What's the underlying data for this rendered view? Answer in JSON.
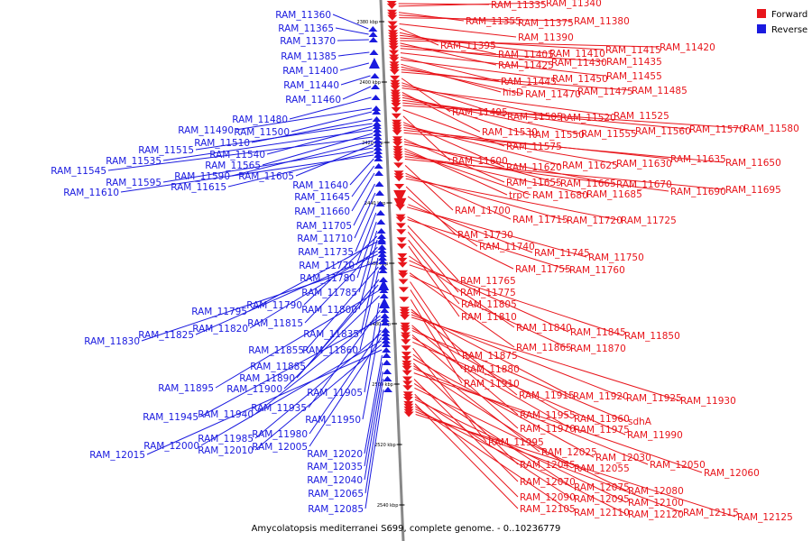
{
  "legend": {
    "forward_label": "Forward",
    "reverse_label": "Reverse",
    "forward_color": "#e8151b",
    "reverse_color": "#1a1adf"
  },
  "caption": "Amycolatopsis mediterranei S699, complete genome. - 0..10236779",
  "axis_color": "#888888",
  "ticks": [
    "2380 kbp",
    "2400 kbp",
    "2420 kbp",
    "2440 kbp",
    "2460 kbp",
    "2480 kbp",
    "2500 kbp",
    "2520 kbp",
    "2540 kbp"
  ],
  "reverse_genes": [
    "RAM_11360",
    "RAM_11365",
    "RAM_11370",
    "RAM_11385",
    "RAM_11400",
    "RAM_11440",
    "RAM_11460",
    "RAM_11480",
    "RAM_11490",
    "RAM_11500",
    "RAM_11510",
    "RAM_11515",
    "RAM_11540",
    "RAM_11535",
    "RAM_11565",
    "RAM_11545",
    "RAM_11590",
    "RAM_11605",
    "RAM_11595",
    "RAM_11615",
    "RAM_11610",
    "RAM_11640",
    "RAM_11645",
    "RAM_11660",
    "RAM_11705",
    "RAM_11710",
    "RAM_11735",
    "RAM_11770",
    "RAM_11780",
    "RAM_11785",
    "RAM_11790",
    "RAM_11800",
    "RAM_11795",
    "RAM_11815",
    "RAM_11820",
    "RAM_11825",
    "RAM_11835",
    "RAM_11830",
    "RAM_11855",
    "RAM_11860",
    "RAM_11885",
    "RAM_11890",
    "RAM_11895",
    "RAM_11900",
    "RAM_11905",
    "RAM_11935",
    "RAM_11940",
    "RAM_11945",
    "RAM_11950",
    "RAM_11980",
    "RAM_11985",
    "RAM_12005",
    "RAM_12000",
    "RAM_12010",
    "RAM_12015",
    "RAM_12020",
    "RAM_12035",
    "RAM_12040",
    "RAM_12065",
    "RAM_12085"
  ],
  "forward_genes": [
    "RAM_11335",
    "RAM_11340",
    "RAM_11355",
    "RAM_11375",
    "RAM_11380",
    "RAM_11390",
    "RAM_11395",
    "RAM_11405",
    "RAM_11410",
    "RAM_11415",
    "RAM_11420",
    "RAM_11425",
    "RAM_11430",
    "RAM_11435",
    "RAM_11455",
    "RAM_11445",
    "RAM_11450",
    "hisD",
    "RAM_11470",
    "RAM_11475",
    "RAM_11485",
    "RAM_11495",
    "RAM_11505",
    "RAM_11520",
    "RAM_11525",
    "RAM_11530",
    "RAM_11550",
    "RAM_11555",
    "RAM_11560",
    "RAM_11570",
    "RAM_11580",
    "RAM_11575",
    "RAM_11600",
    "RAM_11620",
    "RAM_11625",
    "RAM_11630",
    "RAM_11635",
    "RAM_11650",
    "RAM_11655",
    "RAM_11665",
    "RAM_11670",
    "trpC",
    "RAM_11680",
    "RAM_11685",
    "RAM_11690",
    "RAM_11695",
    "RAM_11700",
    "RAM_11715",
    "RAM_11720",
    "RAM_11725",
    "RAM_11730",
    "RAM_11740",
    "RAM_11745",
    "RAM_11750",
    "RAM_11755",
    "RAM_11760",
    "RAM_11765",
    "RAM_11775",
    "RAM_11805",
    "RAM_11810",
    "RAM_11840",
    "RAM_11845",
    "RAM_11850",
    "RAM_11865",
    "RAM_11870",
    "RAM_11875",
    "RAM_11880",
    "RAM_11910",
    "RAM_11915",
    "RAM_11920",
    "RAM_11925",
    "RAM_11930",
    "RAM_11955",
    "RAM_11960",
    "sdhA",
    "RAM_11970",
    "RAM_11975",
    "RAM_11990",
    "RAM_11995",
    "RAM_12025",
    "RAM_12030",
    "RAM_12045",
    "RAM_12055",
    "RAM_12050",
    "RAM_12060",
    "RAM_12070",
    "RAM_12075",
    "RAM_12080",
    "RAM_12090",
    "RAM_12095",
    "RAM_12100",
    "RAM_12105",
    "RAM_12110",
    "RAM_12120",
    "RAM_12115",
    "RAM_12125"
  ]
}
